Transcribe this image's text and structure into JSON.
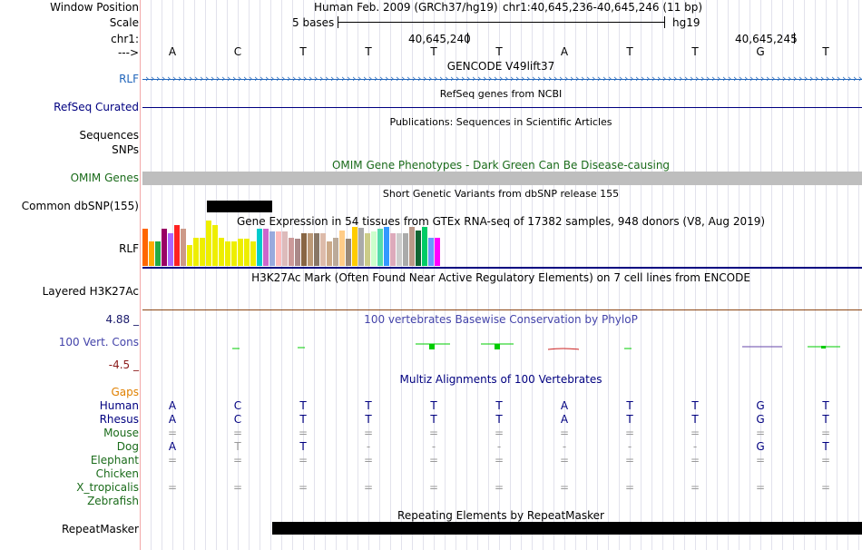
{
  "labels": {
    "window_position": "Window Position",
    "scale": "Scale",
    "chr": "chr1:",
    "arrow": "--->",
    "rlf": "RLF",
    "refseq": "RefSeq Curated",
    "sequences": "Sequences",
    "snps": "SNPs",
    "omim": "OMIM Genes",
    "common_dbsnp": "Common dbSNP(155)",
    "rlf2": "RLF",
    "h3k27ac": "Layered H3K27Ac",
    "cons_max": "4.88 _",
    "cons_name": "100 Vert. Cons",
    "cons_min": "-4.5 _",
    "gaps": "Gaps",
    "repeatmasker": "RepeatMasker"
  },
  "header": {
    "assembly": "Human Feb. 2009 (GRCh37/hg19)",
    "position": "chr1:40,645,236-40,645,246 (11 bp)",
    "scale_text": "5 bases",
    "scale_db": "hg19",
    "tick1": "40,645,240",
    "tick2": "40,645,245"
  },
  "bases": [
    "A",
    "C",
    "T",
    "T",
    "T",
    "T",
    "A",
    "T",
    "T",
    "G",
    "T"
  ],
  "tracks": {
    "gencode": "GENCODE V49lift37",
    "refseq": "RefSeq genes from NCBI",
    "publications": "Publications: Sequences in Scientific Articles",
    "omim": "OMIM Gene Phenotypes - Dark Green Can Be Disease-causing",
    "dbsnp": "Short Genetic Variants from dbSNP release 155",
    "gtex": "Gene Expression in 54 tissues from GTEx RNA-seq of 17382 samples, 948 donors (V8, Aug 2019)",
    "h3k27ac": "H3K27Ac Mark (Often Found Near Active Regulatory Elements) on 7 cell lines from ENCODE",
    "phylop": "100 vertebrates Basewise Conservation by PhyloP",
    "multiz": "Multiz Alignments of 100 Vertebrates",
    "repeatmasker": "Repeating Elements by RepeatMasker"
  },
  "alignment": [
    {
      "species": "Human",
      "color": "#000080",
      "bases": [
        "A",
        "C",
        "T",
        "T",
        "T",
        "T",
        "A",
        "T",
        "T",
        "G",
        "T"
      ]
    },
    {
      "species": "Rhesus",
      "color": "#000080",
      "bases": [
        "A",
        "C",
        "T",
        "T",
        "T",
        "T",
        "A",
        "T",
        "T",
        "G",
        "T"
      ]
    },
    {
      "species": "Mouse",
      "color": "#1a6b1a",
      "bases": [
        "=",
        "=",
        "=",
        "=",
        "=",
        "=",
        "=",
        "=",
        "=",
        "=",
        "="
      ]
    },
    {
      "species": "Dog",
      "color": "#1a6b1a",
      "bases": [
        "A",
        "T",
        "T",
        "-",
        "-",
        "-",
        "-",
        "-",
        "-",
        "G",
        "T"
      ]
    },
    {
      "species": "Elephant",
      "color": "#1a6b1a",
      "bases": [
        "=",
        "=",
        "=",
        "=",
        "=",
        "=",
        "=",
        "=",
        "=",
        "=",
        "="
      ]
    },
    {
      "species": "Chicken",
      "color": "#1a6b1a",
      "bases": [
        "",
        "",
        "",
        "",
        "",
        "",
        "",
        "",
        "",
        "",
        ""
      ]
    },
    {
      "species": "X_tropicalis",
      "color": "#1a6b1a",
      "bases": [
        "=",
        "=",
        "=",
        "=",
        "=",
        "=",
        "=",
        "=",
        "=",
        "=",
        "="
      ]
    },
    {
      "species": "Zebrafish",
      "color": "#1a6b1a",
      "bases": [
        "",
        "",
        "",
        "",
        "",
        "",
        "",
        "",
        "",
        "",
        ""
      ]
    }
  ],
  "gtex_bars": [
    {
      "c": "#ff6600",
      "v": 0.45
    },
    {
      "c": "#ffaa00",
      "v": 0.3
    },
    {
      "c": "#22aa44",
      "v": 0.3
    },
    {
      "c": "#990066",
      "v": 0.45
    },
    {
      "c": "#aa66ff",
      "v": 0.4
    },
    {
      "c": "#ff2222",
      "v": 0.5
    },
    {
      "c": "#cc9988",
      "v": 0.45
    },
    {
      "c": "#eeee00",
      "v": 0.25
    },
    {
      "c": "#eeee00",
      "v": 0.35
    },
    {
      "c": "#eeee00",
      "v": 0.35
    },
    {
      "c": "#eeee00",
      "v": 0.55
    },
    {
      "c": "#eeee00",
      "v": 0.5
    },
    {
      "c": "#eeee00",
      "v": 0.35
    },
    {
      "c": "#eeee00",
      "v": 0.3
    },
    {
      "c": "#eeee00",
      "v": 0.3
    },
    {
      "c": "#eeee00",
      "v": 0.33
    },
    {
      "c": "#eeee00",
      "v": 0.33
    },
    {
      "c": "#eeee00",
      "v": 0.3
    },
    {
      "c": "#00cccc",
      "v": 0.45
    },
    {
      "c": "#cc66cc",
      "v": 0.45
    },
    {
      "c": "#99aadd",
      "v": 0.42
    },
    {
      "c": "#ffbbbb",
      "v": 0.42
    },
    {
      "c": "#ddbbbb",
      "v": 0.42
    },
    {
      "c": "#cc9999",
      "v": 0.35
    },
    {
      "c": "#aa8888",
      "v": 0.33
    },
    {
      "c": "#886644",
      "v": 0.4
    },
    {
      "c": "#bb9977",
      "v": 0.4
    },
    {
      "c": "#887766",
      "v": 0.4
    },
    {
      "c": "#ddbbaa",
      "v": 0.4
    },
    {
      "c": "#ccaa88",
      "v": 0.3
    },
    {
      "c": "#bbaa99",
      "v": 0.35
    },
    {
      "c": "#ffcc88",
      "v": 0.43
    },
    {
      "c": "#998877",
      "v": 0.33
    },
    {
      "c": "#ffcc00",
      "v": 0.48
    },
    {
      "c": "#aaaaaa",
      "v": 0.47
    },
    {
      "c": "#cccc88",
      "v": 0.4
    },
    {
      "c": "#ccffcc",
      "v": 0.42
    },
    {
      "c": "#55ddaa",
      "v": 0.45
    },
    {
      "c": "#3399ff",
      "v": 0.48
    },
    {
      "c": "#ddaabb",
      "v": 0.4
    },
    {
      "c": "#cccccc",
      "v": 0.4
    },
    {
      "c": "#aaaaaa",
      "v": 0.4
    },
    {
      "c": "#bb9988",
      "v": 0.48
    },
    {
      "c": "#116633",
      "v": 0.43
    },
    {
      "c": "#00cc66",
      "v": 0.48
    },
    {
      "c": "#6699ff",
      "v": 0.35
    },
    {
      "c": "#ff00ff",
      "v": 0.35
    }
  ],
  "colors": {
    "track_blue": "#000080",
    "omim_green": "#1a6b1a",
    "phylop_blue": "#4444aa",
    "gaps_orange": "#e08000",
    "rlf_blue": "#2266bb",
    "cons_max": "#1a1a6b",
    "cons_min": "#8b1a1a"
  }
}
